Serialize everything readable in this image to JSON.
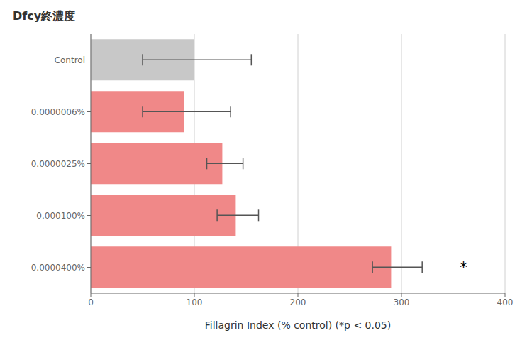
{
  "chart_data": {
    "type": "bar",
    "orientation": "horizontal",
    "title": "Dfcy終濃度",
    "xlabel": "Fillagrin Index (% control)  (*p < 0.05)",
    "categories": [
      "0.0000400%",
      "0.000100%",
      "0.0000025%",
      "0.0000006%",
      "Control"
    ],
    "values": [
      290,
      140,
      127,
      90,
      100
    ],
    "errors_minus": [
      18,
      18,
      15,
      40,
      50
    ],
    "errors_plus": [
      30,
      22,
      20,
      45,
      55
    ],
    "colors": [
      "#F08888",
      "#F08888",
      "#F08888",
      "#F08888",
      "#C8C8C8"
    ],
    "xlim": [
      0,
      400
    ],
    "xticks": [
      0,
      100,
      200,
      300,
      400
    ],
    "grid": true,
    "annotations": [
      {
        "text": "*",
        "x": 360,
        "category": "0.0000400%"
      }
    ]
  }
}
